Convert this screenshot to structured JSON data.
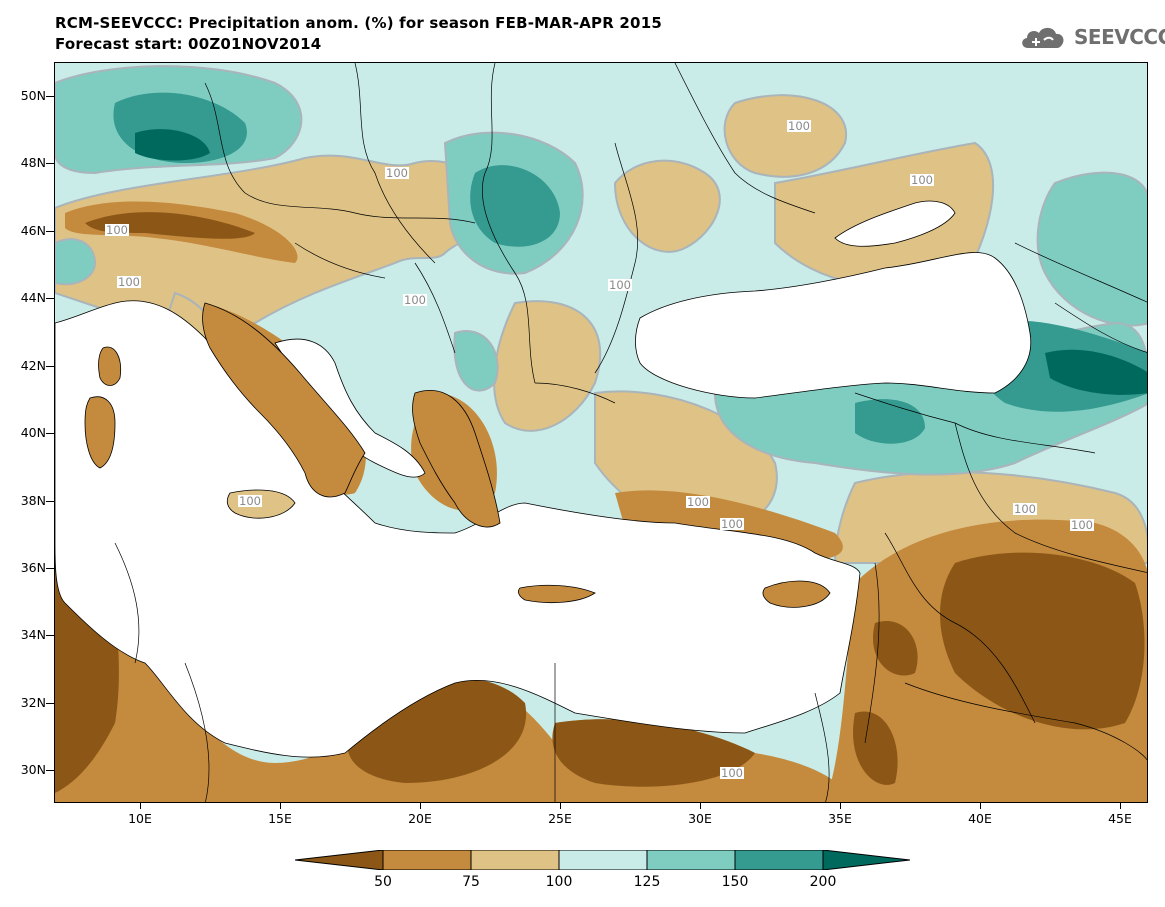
{
  "header": {
    "title_line1": "RCM-SEEVCCC: Precipitation anom. (%) for season FEB-MAR-APR 2015",
    "title_line2": "Forecast start: 00Z01NOV2014"
  },
  "logo": {
    "text": "SEEVCCC",
    "icon": "cloud-icon"
  },
  "map": {
    "lat_range": [
      29,
      51
    ],
    "lon_range": [
      7,
      46
    ],
    "lat_labels": [
      "50N",
      "48N",
      "46N",
      "44N",
      "42N",
      "40N",
      "38N",
      "36N",
      "34N",
      "32N",
      "30N"
    ],
    "lon_labels": [
      "10E",
      "15E",
      "20E",
      "25E",
      "30E",
      "35E",
      "40E",
      "45E"
    ],
    "contour_label": "100",
    "colors": {
      "ocean": "#ffffff",
      "very_dry": "#8c5716",
      "dry": "#c48a3e",
      "slightly_dry": "#dfc285",
      "slightly_wet": "#c9ece8",
      "wet": "#7fcdc1",
      "very_wet": "#359a8f",
      "extreme_wet": "#00695e"
    }
  },
  "colorbar": {
    "ticks": [
      "50",
      "75",
      "100",
      "125",
      "150",
      "200"
    ],
    "colors": [
      "#8c5716",
      "#c48a3e",
      "#dfc285",
      "#c9ece8",
      "#7fcdc1",
      "#359a8f",
      "#00695e"
    ]
  }
}
